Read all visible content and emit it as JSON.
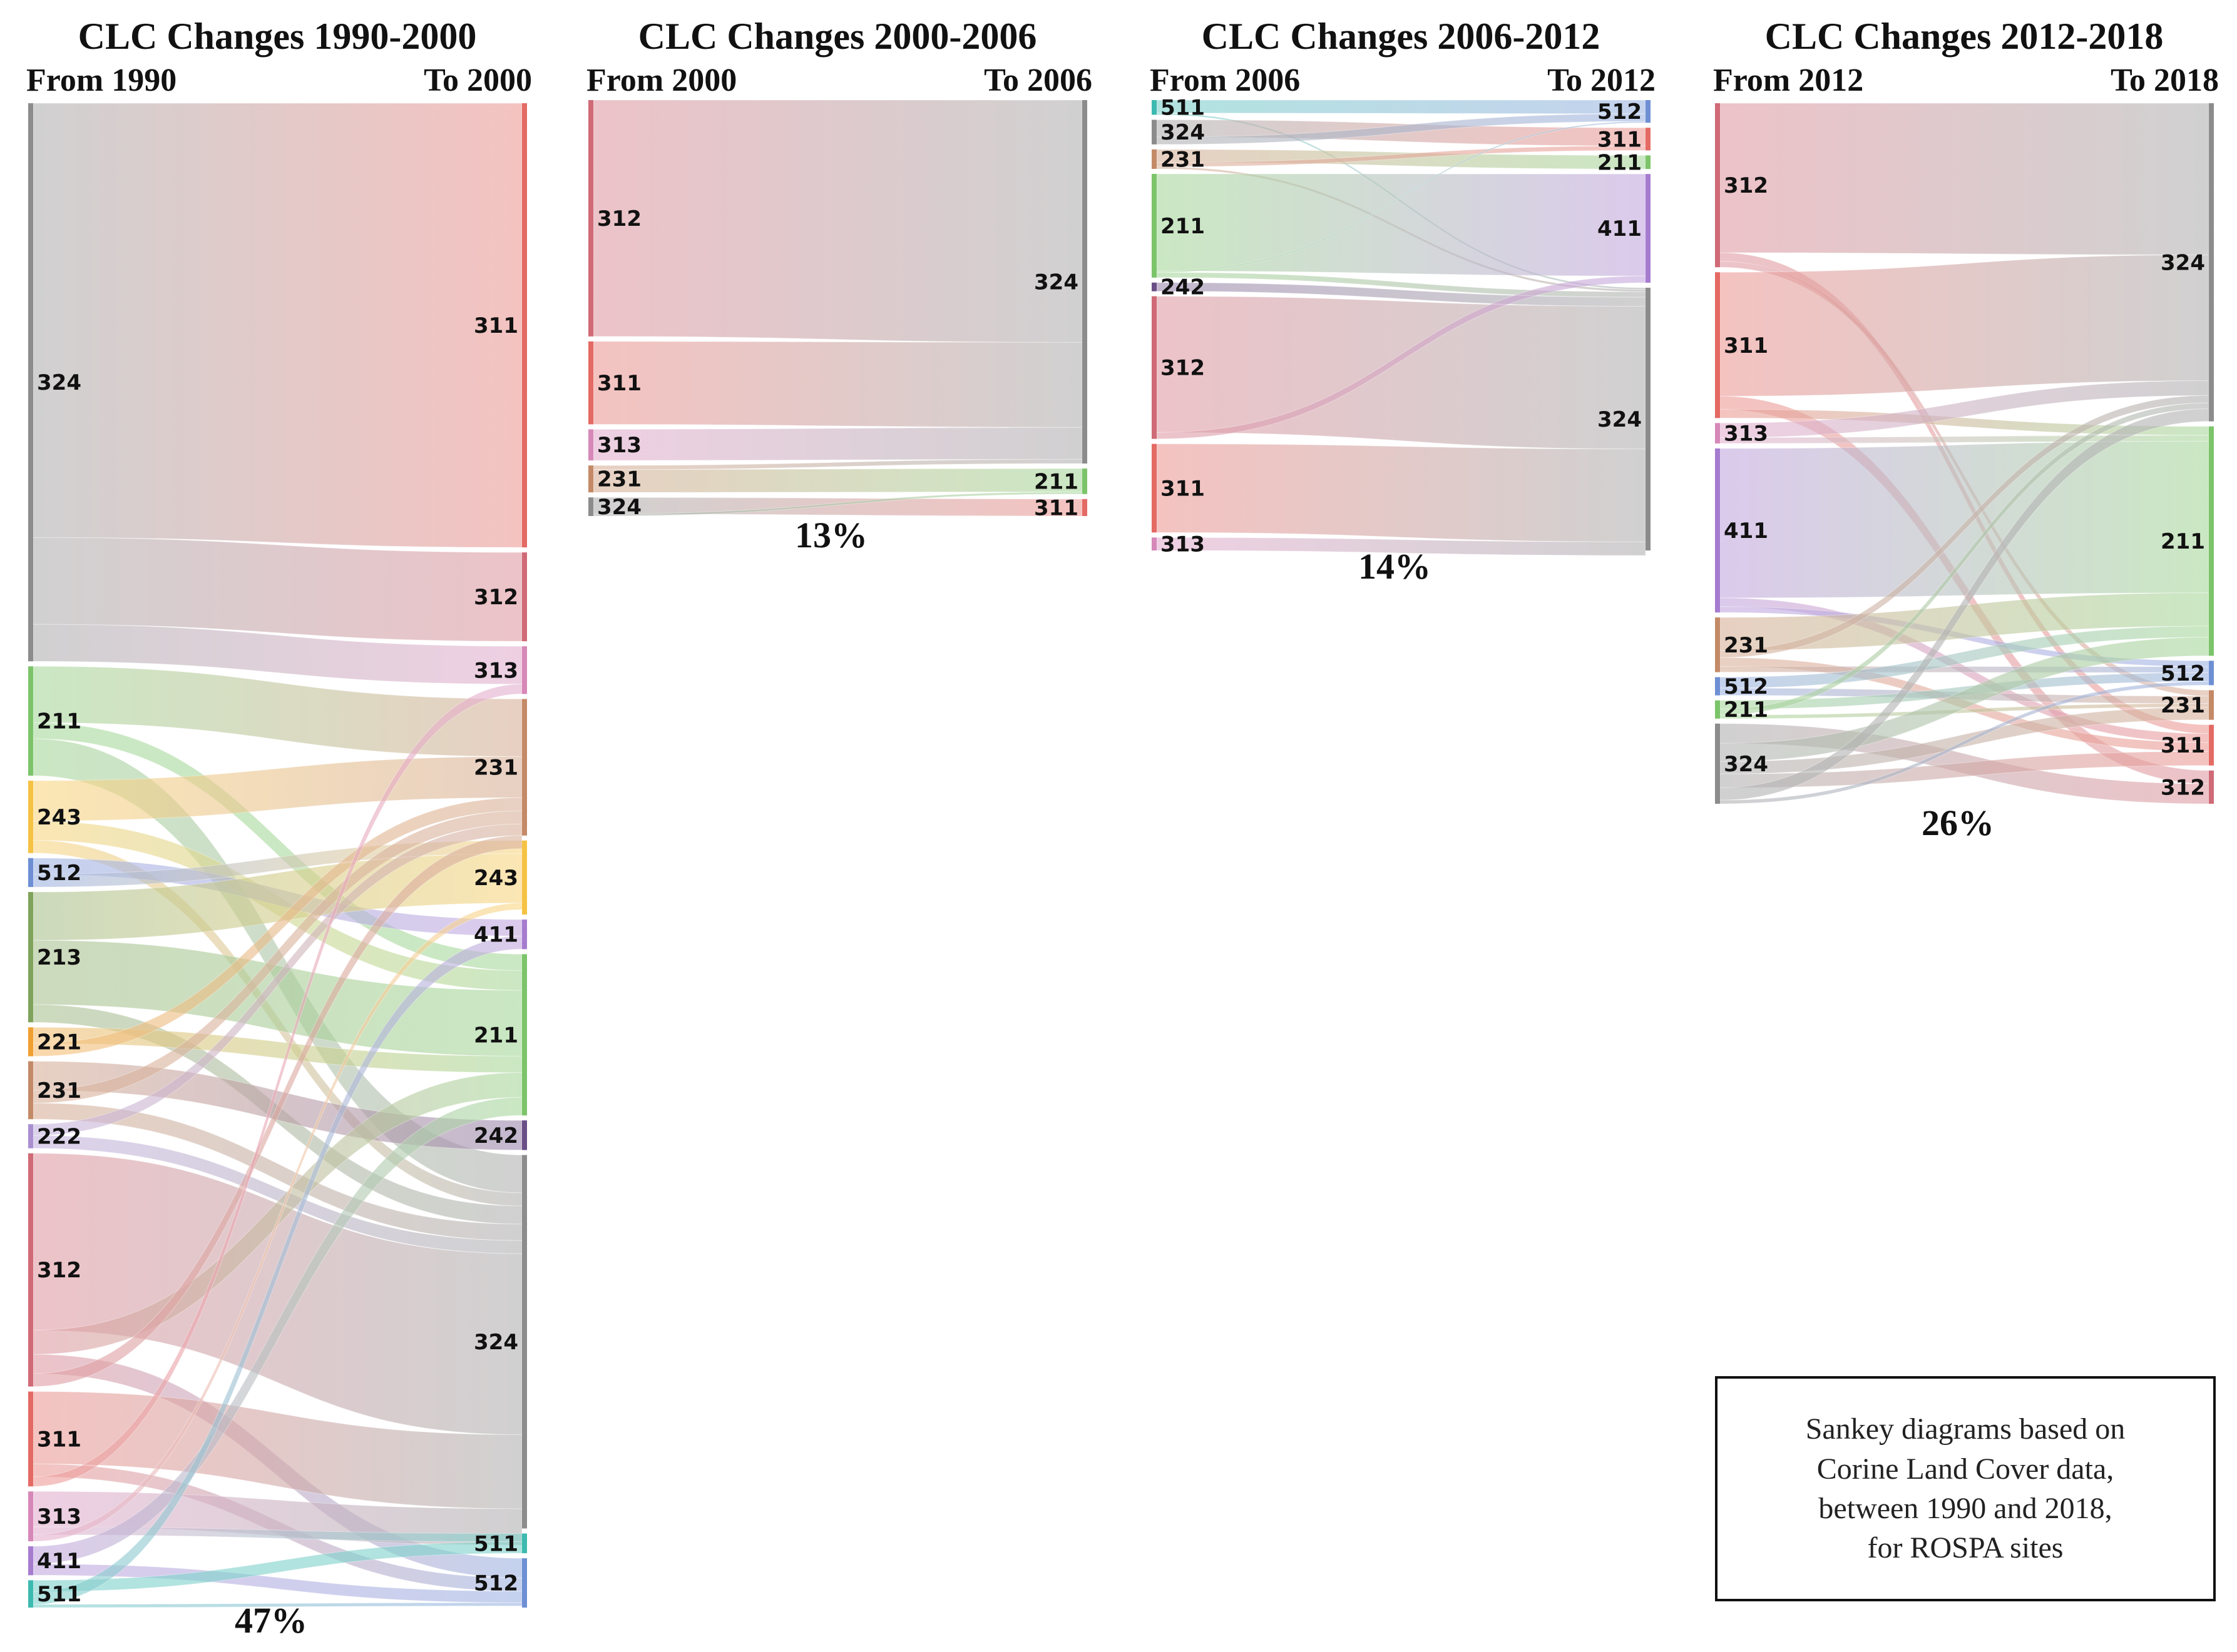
{
  "colors": {
    "211": "#7cc46a",
    "213": "#7fa35a",
    "221": "#f0a030",
    "222": "#a98fd0",
    "231": "#c48a68",
    "242": "#6a4e86",
    "243": "#f6c244",
    "311": "#e46a64",
    "312": "#cf6a76",
    "313": "#d688b8",
    "324": "#8c8c8c",
    "411": "#a67ccf",
    "511": "#3dbab0",
    "512": "#6e8fd4"
  },
  "diagrams": [
    {
      "title": "CLC Changes 1990-2000",
      "from_label": "From 1990",
      "to_label": "To 2000",
      "percent": "47%",
      "sources": [
        {
          "code": "324",
          "value": 0.347
        },
        {
          "code": "211",
          "value": 0.068
        },
        {
          "code": "243",
          "value": 0.045
        },
        {
          "code": "512",
          "value": 0.018
        },
        {
          "code": "213",
          "value": 0.081
        },
        {
          "code": "221",
          "value": 0.018
        },
        {
          "code": "231",
          "value": 0.036
        },
        {
          "code": "222",
          "value": 0.015
        },
        {
          "code": "312",
          "value": 0.145
        },
        {
          "code": "311",
          "value": 0.059
        },
        {
          "code": "313",
          "value": 0.031
        },
        {
          "code": "411",
          "value": 0.018
        },
        {
          "code": "511",
          "value": 0.017
        }
      ],
      "targets": [
        {
          "code": "311",
          "value": 0.27
        },
        {
          "code": "312",
          "value": 0.054
        },
        {
          "code": "313",
          "value": 0.029
        },
        {
          "code": "231",
          "value": 0.083
        },
        {
          "code": "243",
          "value": 0.045
        },
        {
          "code": "411",
          "value": 0.018
        },
        {
          "code": "211",
          "value": 0.098
        },
        {
          "code": "242",
          "value": 0.018
        },
        {
          "code": "324",
          "value": 0.227
        },
        {
          "code": "511",
          "value": 0.012
        },
        {
          "code": "512",
          "value": 0.03
        }
      ],
      "flows": [
        [
          "324",
          "311",
          0.27
        ],
        [
          "324",
          "312",
          0.054
        ],
        [
          "324",
          "313",
          0.023
        ],
        [
          "211",
          "231",
          0.035
        ],
        [
          "211",
          "211",
          0.01
        ],
        [
          "211",
          "324",
          0.023
        ],
        [
          "243",
          "231",
          0.025
        ],
        [
          "243",
          "211",
          0.012
        ],
        [
          "243",
          "324",
          0.008
        ],
        [
          "512",
          "411",
          0.01
        ],
        [
          "512",
          "243",
          0.008
        ],
        [
          "213",
          "243",
          0.03
        ],
        [
          "213",
          "211",
          0.04
        ],
        [
          "213",
          "324",
          0.011
        ],
        [
          "221",
          "211",
          0.01
        ],
        [
          "221",
          "231",
          0.008
        ],
        [
          "231",
          "242",
          0.018
        ],
        [
          "231",
          "231",
          0.008
        ],
        [
          "231",
          "324",
          0.01
        ],
        [
          "222",
          "231",
          0.007
        ],
        [
          "222",
          "324",
          0.008
        ],
        [
          "312",
          "324",
          0.11
        ],
        [
          "312",
          "211",
          0.015
        ],
        [
          "312",
          "512",
          0.012
        ],
        [
          "312",
          "231",
          0.008
        ],
        [
          "311",
          "324",
          0.045
        ],
        [
          "311",
          "512",
          0.008
        ],
        [
          "311",
          "313",
          0.006
        ],
        [
          "313",
          "324",
          0.022
        ],
        [
          "313",
          "511",
          0.005
        ],
        [
          "313",
          "243",
          0.004
        ],
        [
          "411",
          "211",
          0.011
        ],
        [
          "411",
          "512",
          0.007
        ],
        [
          "511",
          "511",
          0.007
        ],
        [
          "511",
          "411",
          0.008
        ],
        [
          "511",
          "512",
          0.002
        ]
      ]
    },
    {
      "title": "CLC Changes 2000-2006",
      "from_label": "From 2000",
      "to_label": "To 2006",
      "percent": "13%",
      "sources": [
        {
          "code": "312",
          "value": 0.57
        },
        {
          "code": "311",
          "value": 0.2
        },
        {
          "code": "313",
          "value": 0.075
        },
        {
          "code": "231",
          "value": 0.065
        },
        {
          "code": "324",
          "value": 0.045
        }
      ],
      "targets": [
        {
          "code": "324",
          "value": 0.855
        },
        {
          "code": "211",
          "value": 0.06
        },
        {
          "code": "311",
          "value": 0.04
        }
      ],
      "flows": [
        [
          "312",
          "324",
          0.57
        ],
        [
          "311",
          "324",
          0.2
        ],
        [
          "313",
          "324",
          0.075
        ],
        [
          "231",
          "324",
          0.01
        ],
        [
          "231",
          "211",
          0.055
        ],
        [
          "324",
          "311",
          0.04
        ],
        [
          "324",
          "211",
          0.005
        ]
      ]
    },
    {
      "title": "CLC Changes 2006-2012",
      "from_label": "From 2006",
      "to_label": "To 2012",
      "percent": "14%",
      "sources": [
        {
          "code": "511",
          "value": 0.034
        },
        {
          "code": "324",
          "value": 0.057
        },
        {
          "code": "231",
          "value": 0.045
        },
        {
          "code": "211",
          "value": 0.24
        },
        {
          "code": "242",
          "value": 0.02
        },
        {
          "code": "312",
          "value": 0.33
        },
        {
          "code": "311",
          "value": 0.205
        },
        {
          "code": "313",
          "value": 0.03
        }
      ],
      "targets": [
        {
          "code": "512",
          "value": 0.05
        },
        {
          "code": "311",
          "value": 0.05
        },
        {
          "code": "211",
          "value": 0.03
        },
        {
          "code": "411",
          "value": 0.24
        },
        {
          "code": "324",
          "value": 0.58
        }
      ],
      "flows": [
        [
          "511",
          "512",
          0.03
        ],
        [
          "511",
          "324",
          0.004
        ],
        [
          "324",
          "311",
          0.04
        ],
        [
          "324",
          "512",
          0.017
        ],
        [
          "231",
          "211",
          0.03
        ],
        [
          "231",
          "311",
          0.01
        ],
        [
          "231",
          "324",
          0.005
        ],
        [
          "211",
          "411",
          0.225
        ],
        [
          "211",
          "512",
          0.003
        ],
        [
          "211",
          "324",
          0.012
        ],
        [
          "242",
          "324",
          0.02
        ],
        [
          "312",
          "324",
          0.315
        ],
        [
          "312",
          "411",
          0.015
        ],
        [
          "311",
          "324",
          0.205
        ],
        [
          "313",
          "324",
          0.03
        ]
      ]
    },
    {
      "title": "CLC Changes 2012-2018",
      "from_label": "From 2012",
      "to_label": "To 2018",
      "percent": "26%",
      "sources": [
        {
          "code": "312",
          "value": 0.225
        },
        {
          "code": "311",
          "value": 0.2
        },
        {
          "code": "313",
          "value": 0.028
        },
        {
          "code": "411",
          "value": 0.225
        },
        {
          "code": "231",
          "value": 0.075
        },
        {
          "code": "512",
          "value": 0.025
        },
        {
          "code": "211",
          "value": 0.025
        },
        {
          "code": "324",
          "value": 0.11
        }
      ],
      "targets": [
        {
          "code": "324",
          "value": 0.43
        },
        {
          "code": "211",
          "value": 0.31
        },
        {
          "code": "512",
          "value": 0.033
        },
        {
          "code": "231",
          "value": 0.04
        },
        {
          "code": "311",
          "value": 0.055
        },
        {
          "code": "312",
          "value": 0.045
        }
      ],
      "flows": [
        [
          "312",
          "324",
          0.205
        ],
        [
          "312",
          "311",
          0.012
        ],
        [
          "312",
          "231",
          0.008
        ],
        [
          "311",
          "324",
          0.17
        ],
        [
          "311",
          "312",
          0.018
        ],
        [
          "311",
          "211",
          0.012
        ],
        [
          "313",
          "324",
          0.02
        ],
        [
          "313",
          "211",
          0.008
        ],
        [
          "411",
          "211",
          0.205
        ],
        [
          "411",
          "311",
          0.012
        ],
        [
          "411",
          "512",
          0.008
        ],
        [
          "231",
          "211",
          0.045
        ],
        [
          "231",
          "324",
          0.01
        ],
        [
          "231",
          "311",
          0.012
        ],
        [
          "231",
          "512",
          0.008
        ],
        [
          "512",
          "211",
          0.015
        ],
        [
          "512",
          "231",
          0.01
        ],
        [
          "211",
          "512",
          0.012
        ],
        [
          "211",
          "324",
          0.008
        ],
        [
          "211",
          "231",
          0.005
        ],
        [
          "324",
          "312",
          0.027
        ],
        [
          "324",
          "211",
          0.025
        ],
        [
          "324",
          "231",
          0.017
        ],
        [
          "324",
          "311",
          0.019
        ],
        [
          "324",
          "324",
          0.017
        ],
        [
          "324",
          "512",
          0.005
        ]
      ]
    }
  ],
  "note": {
    "lines": [
      "Sankey diagrams based on",
      "Corine Land Cover data,",
      "between 1990 and 2018,",
      "for ROSPA sites"
    ]
  }
}
